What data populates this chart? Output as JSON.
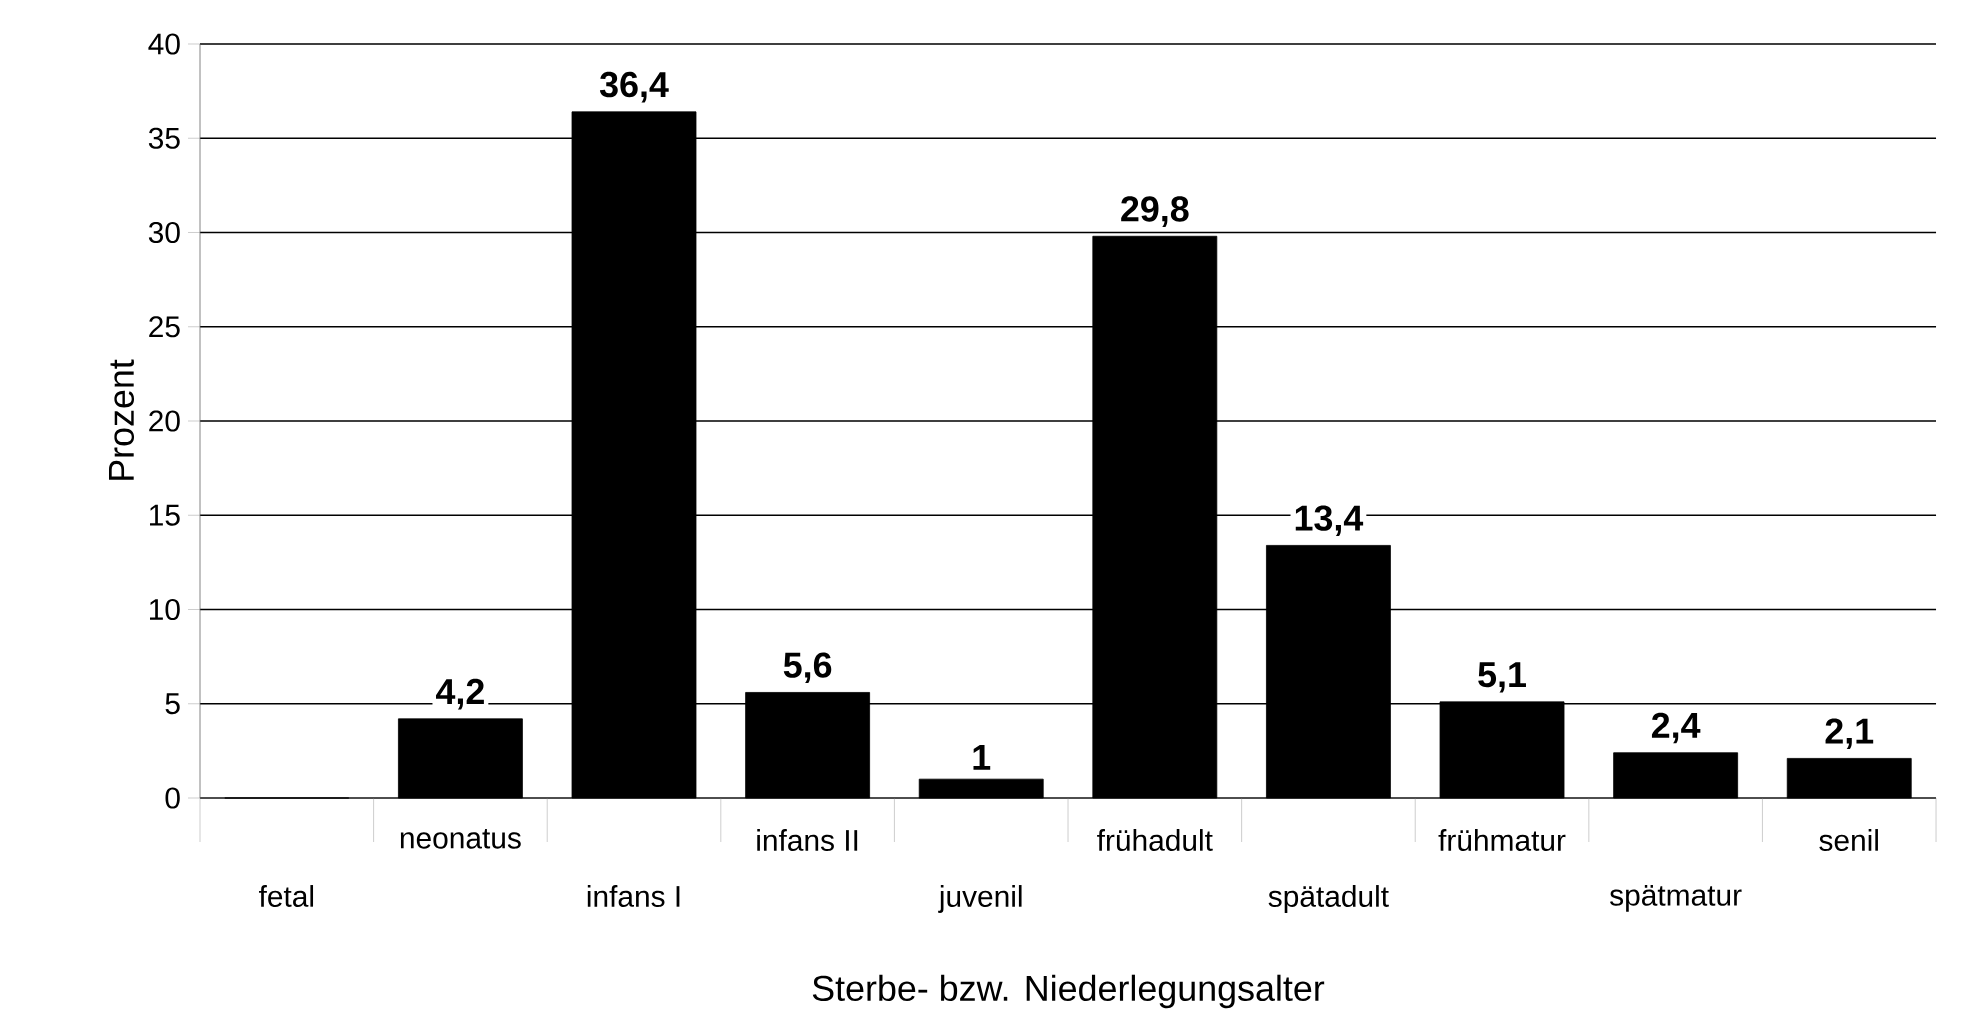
{
  "chart_data": {
    "type": "bar",
    "xlabel": "Sterbe- bzw. Niederlegungsalter",
    "ylabel": "Prozent",
    "categories": [
      "fetal",
      "neonatus",
      "infans I",
      "infans II",
      "juvenil",
      "frühadult",
      "spätadult",
      "frühmatur",
      "spätmatur",
      "senil"
    ],
    "values": [
      0,
      4.2,
      36.4,
      5.6,
      1,
      29.8,
      13.4,
      5.1,
      2.4,
      2.1
    ],
    "value_labels": [
      null,
      "4,2",
      "36,4",
      "5,6",
      "1",
      "29,8",
      "13,4",
      "5,1",
      "2,4",
      "2,1"
    ],
    "color": "#000000",
    "ylim": [
      0,
      40
    ],
    "yticks": [
      0,
      5,
      10,
      15,
      20,
      25,
      30,
      35,
      40
    ],
    "grid": "y"
  }
}
